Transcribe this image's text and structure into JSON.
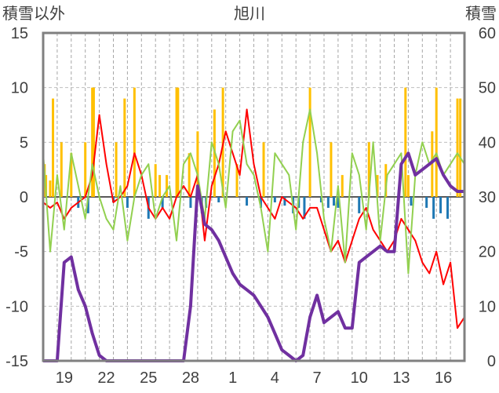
{
  "chart_data": {
    "type": "line",
    "title": "旭川",
    "ylabel_left": "積雪以外",
    "ylabel_right": "積雪",
    "y_left": {
      "min": -15,
      "max": 15,
      "ticks": [
        "15",
        "10",
        "5",
        "0",
        "-5",
        "-10",
        "-15"
      ]
    },
    "y_right": {
      "min": 0,
      "max": 60,
      "ticks": [
        "60",
        "50",
        "40",
        "30",
        "20",
        "10",
        "0"
      ]
    },
    "x_ticks": [
      "19",
      "22",
      "25",
      "28",
      "1",
      "4",
      "7",
      "10",
      "13",
      "16"
    ],
    "grid": true,
    "colors": {
      "temperature": "#ff0000",
      "temp_diff": "#92d050",
      "precip_pos": "#ffc000",
      "precip_neg": "#1f78b4",
      "snow_depth": "#7030a0",
      "frame": "#808080"
    },
    "series": [
      {
        "axis": "left",
        "color": "#ff0000",
        "x": [
          0,
          0.5,
          1,
          1.5,
          2,
          2.5,
          3,
          3.5,
          4,
          4.5,
          5,
          5.5,
          6,
          6.5,
          7,
          7.5,
          8,
          8.5,
          9,
          9.5,
          10,
          10.5,
          11,
          11.5,
          12,
          12.5,
          13,
          13.5,
          14,
          14.5,
          15,
          15.5,
          16,
          16.5,
          17,
          17.5,
          18,
          18.5,
          19,
          19.5,
          20,
          20.5,
          21,
          21.5,
          22,
          22.5,
          23,
          23.5,
          24,
          24.5,
          25,
          25.5,
          26,
          26.5,
          27,
          27.5,
          28,
          28.5,
          29,
          29.5,
          30
        ],
        "y": [
          -0.5,
          -1,
          -0.5,
          -2,
          -1,
          -0.5,
          0,
          2,
          7.5,
          3,
          -0.5,
          0,
          1,
          4,
          2,
          -1,
          -2,
          -1,
          -2,
          0,
          1,
          0,
          2,
          -4,
          1,
          3,
          6,
          4,
          2,
          8,
          3,
          0,
          -1,
          -2,
          0,
          -0.5,
          -1,
          -2,
          -1,
          -1,
          -3,
          -5,
          -4,
          -6,
          -4,
          -2,
          -1,
          -3,
          -4,
          -5,
          -4,
          -2,
          -3,
          -4,
          -6,
          -7,
          -5,
          -8,
          -6,
          -12,
          -11
        ]
      },
      {
        "axis": "left",
        "color": "#92d050",
        "x": [
          0,
          0.5,
          1,
          1.5,
          2,
          2.5,
          3,
          3.5,
          4,
          4.5,
          5,
          5.5,
          6,
          6.5,
          7,
          7.5,
          8,
          8.5,
          9,
          9.5,
          10,
          10.5,
          11,
          11.5,
          12,
          12.5,
          13,
          13.5,
          14,
          14.5,
          15,
          15.5,
          16,
          16.5,
          17,
          17.5,
          18,
          18.5,
          19,
          19.5,
          20,
          20.5,
          21,
          21.5,
          22,
          22.5,
          23,
          23.5,
          24,
          24.5,
          25,
          25.5,
          26,
          26.5,
          27,
          27.5,
          28,
          28.5,
          29,
          29.5,
          30
        ],
        "y": [
          4,
          -5,
          2,
          -3,
          4,
          1,
          -2,
          3,
          0,
          -2,
          -3,
          1,
          -4,
          0,
          2,
          3,
          -2,
          0,
          1,
          -4,
          3,
          4,
          2,
          -2,
          5,
          3,
          -1,
          6,
          7,
          3,
          2,
          -1,
          -5,
          4,
          3,
          2,
          -3,
          5,
          8,
          4,
          -2,
          -5,
          1,
          -6,
          4,
          2,
          -3,
          5,
          -4,
          2,
          3,
          4,
          -7,
          2,
          5,
          3,
          4,
          2,
          3,
          4,
          3
        ]
      },
      {
        "axis": "right",
        "color": "#7030a0",
        "x": [
          0,
          0.5,
          1,
          1.5,
          2,
          2.5,
          3,
          3.5,
          4,
          4.5,
          5,
          5.5,
          6,
          6.5,
          7,
          7.5,
          8,
          8.5,
          9,
          9.5,
          10,
          10.5,
          11,
          11.5,
          12,
          12.5,
          13,
          13.5,
          14,
          14.5,
          15,
          15.5,
          16,
          16.5,
          17,
          17.5,
          18,
          18.5,
          19,
          19.5,
          20,
          20.5,
          21,
          21.5,
          22,
          22.5,
          23,
          23.5,
          24,
          24.5,
          25,
          25.5,
          26,
          26.5,
          27,
          27.5,
          28,
          28.5,
          29,
          29.5,
          30
        ],
        "y": [
          0,
          0,
          0,
          18,
          19,
          13,
          10,
          5,
          1,
          0,
          0,
          0,
          0,
          0,
          0,
          0,
          0,
          0,
          0,
          0,
          0,
          10,
          32,
          25,
          24,
          22,
          19,
          16,
          14,
          13,
          12,
          10,
          8,
          5,
          2,
          1,
          0,
          1,
          8,
          12,
          7,
          8,
          9,
          6,
          6,
          18,
          19,
          20,
          21,
          20,
          20,
          36,
          38,
          34,
          35,
          36,
          37,
          34,
          32,
          31,
          31
        ]
      },
      {
        "axis": "left",
        "color": "#ffc000",
        "type": "bar",
        "x": [
          0.1,
          0.2,
          0.5,
          0.7,
          1.3,
          2,
          3,
          3.5,
          3.6,
          5.2,
          5.8,
          6.5,
          8,
          8.3,
          8.8,
          9.5,
          9.6,
          10.4,
          11,
          12.2,
          12.8,
          13.8,
          15.7,
          19,
          20.5,
          21.3,
          23.2,
          23.8,
          24.4,
          25.8,
          26,
          27.7,
          28,
          29.5,
          29.7
        ],
        "y": [
          3,
          2,
          1.5,
          9,
          5,
          4,
          5,
          10,
          10,
          5,
          9,
          10,
          3,
          2,
          2,
          10,
          10,
          4,
          6,
          8,
          10,
          3,
          5,
          10,
          5,
          2,
          5,
          2,
          3,
          10,
          2,
          6,
          10,
          9,
          9
        ]
      },
      {
        "axis": "left",
        "color": "#1f78b4",
        "type": "bar",
        "x": [
          2.5,
          3.2,
          5,
          6,
          7.5,
          8.5,
          10.5,
          11.3,
          11.6,
          12.5,
          14.5,
          15.5,
          16.5,
          17.2,
          17.8,
          18.2,
          18.6,
          19.8,
          20.3,
          20.7,
          21,
          22.5,
          25.3,
          26.2,
          27.3,
          27.8,
          28.3,
          28.8
        ],
        "y": [
          -1,
          -1.5,
          -0.5,
          -1,
          -2,
          -1,
          -1,
          -1.5,
          -1,
          -0.5,
          -0.8,
          -1,
          -0.5,
          -0.8,
          -1.5,
          -1,
          -2,
          -0.5,
          -1,
          -0.8,
          -1,
          -1.5,
          -0.5,
          -0.8,
          -1,
          -2,
          -1.5,
          -2
        ]
      }
    ]
  }
}
